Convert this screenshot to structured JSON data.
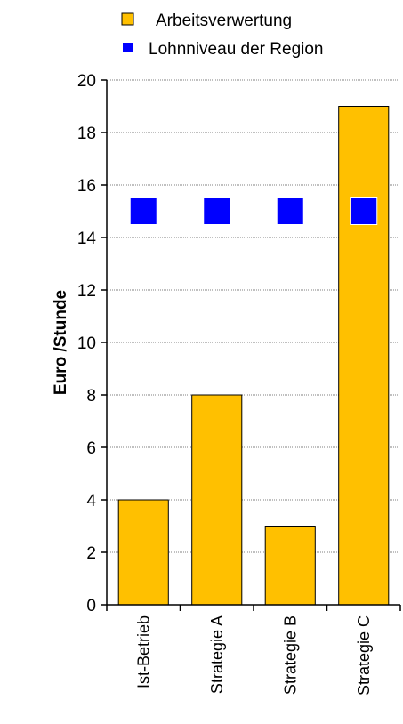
{
  "chart_data": {
    "type": "bar",
    "categories": [
      "Ist-Betrieb",
      "Strategie A",
      "Strategie B",
      "Strategie C"
    ],
    "series": [
      {
        "name": "Arbeitsverwertung",
        "kind": "bar",
        "color": "#FFC000",
        "values": [
          4,
          8,
          3,
          19
        ]
      },
      {
        "name": "Lohnniveau der Region",
        "kind": "marker",
        "color": "#0000FF",
        "values": [
          15,
          15,
          15,
          15
        ]
      }
    ],
    "ylabel": "Euro /Stunde",
    "xlabel": "",
    "ylim": [
      0,
      20
    ],
    "yticks": [
      0,
      2,
      4,
      6,
      8,
      10,
      12,
      14,
      16,
      18,
      20
    ],
    "grid": true,
    "legend_position": "top"
  }
}
